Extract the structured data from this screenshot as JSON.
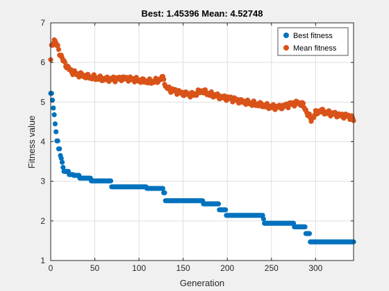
{
  "chart_data": {
    "type": "scatter",
    "title": "Best: 1.45396 Mean: 4.52748",
    "xlabel": "Generation",
    "ylabel": "Fitness value",
    "xlim": [
      0,
      343
    ],
    "ylim": [
      1,
      7
    ],
    "xticks": [
      "0",
      "50",
      "100",
      "150",
      "200",
      "250",
      "300"
    ],
    "yticks": [
      "1",
      "2",
      "3",
      "4",
      "5",
      "6",
      "7"
    ],
    "grid": true,
    "legend_position": "top-right",
    "series": [
      {
        "name": "Best fitness",
        "color": "#0072BD",
        "points": [
          [
            0,
            5.22
          ],
          [
            1,
            5.22
          ],
          [
            2,
            5.05
          ],
          [
            3,
            4.85
          ],
          [
            4,
            4.68
          ],
          [
            5,
            4.45
          ],
          [
            6,
            4.25
          ],
          [
            7,
            4.02
          ],
          [
            8,
            4.02
          ],
          [
            9,
            3.82
          ],
          [
            10,
            3.82
          ],
          [
            11,
            3.65
          ],
          [
            12,
            3.58
          ],
          [
            13,
            3.48
          ],
          [
            14,
            3.35
          ],
          [
            15,
            3.25
          ],
          [
            20,
            3.25
          ],
          [
            21,
            3.17
          ],
          [
            25,
            3.17
          ],
          [
            26,
            3.15
          ],
          [
            32,
            3.15
          ],
          [
            33,
            3.08
          ],
          [
            45,
            3.08
          ],
          [
            46,
            3.01
          ],
          [
            68,
            3.01
          ],
          [
            69,
            2.86
          ],
          [
            99,
            2.86
          ],
          [
            100,
            2.86
          ],
          [
            108,
            2.86
          ],
          [
            109,
            2.82
          ],
          [
            127,
            2.82
          ],
          [
            128,
            2.71
          ],
          [
            129,
            2.71
          ],
          [
            130,
            2.51
          ],
          [
            172,
            2.51
          ],
          [
            173,
            2.43
          ],
          [
            190,
            2.43
          ],
          [
            191,
            2.28
          ],
          [
            198,
            2.28
          ],
          [
            199,
            2.14
          ],
          [
            240,
            2.14
          ],
          [
            241,
            2.05
          ],
          [
            242,
            1.94
          ],
          [
            275,
            1.94
          ],
          [
            276,
            1.85
          ],
          [
            288,
            1.85
          ],
          [
            289,
            1.68
          ],
          [
            293,
            1.68
          ],
          [
            294,
            1.47
          ],
          [
            343,
            1.47
          ]
        ]
      },
      {
        "name": "Mean fitness",
        "color": "#D95319",
        "points": [
          [
            0,
            6.04
          ],
          [
            1,
            6.38
          ],
          [
            2,
            6.45
          ],
          [
            3,
            6.55
          ],
          [
            4,
            6.58
          ],
          [
            5,
            6.52
          ],
          [
            6,
            6.5
          ],
          [
            7,
            6.42
          ],
          [
            8,
            6.38
          ],
          [
            9,
            6.32
          ],
          [
            10,
            6.25
          ],
          [
            12,
            6.15
          ],
          [
            14,
            6.05
          ],
          [
            16,
            5.98
          ],
          [
            18,
            5.92
          ],
          [
            20,
            5.85
          ],
          [
            22,
            5.8
          ],
          [
            25,
            5.76
          ],
          [
            28,
            5.72
          ],
          [
            30,
            5.7
          ],
          [
            35,
            5.68
          ],
          [
            40,
            5.65
          ],
          [
            45,
            5.63
          ],
          [
            50,
            5.62
          ],
          [
            55,
            5.6
          ],
          [
            60,
            5.58
          ],
          [
            65,
            5.58
          ],
          [
            70,
            5.58
          ],
          [
            75,
            5.58
          ],
          [
            80,
            5.6
          ],
          [
            85,
            5.6
          ],
          [
            90,
            5.58
          ],
          [
            95,
            5.57
          ],
          [
            100,
            5.55
          ],
          [
            105,
            5.53
          ],
          [
            110,
            5.52
          ],
          [
            115,
            5.52
          ],
          [
            120,
            5.54
          ],
          [
            125,
            5.58
          ],
          [
            128,
            5.62
          ],
          [
            130,
            5.38
          ],
          [
            135,
            5.32
          ],
          [
            140,
            5.28
          ],
          [
            145,
            5.25
          ],
          [
            150,
            5.22
          ],
          [
            155,
            5.2
          ],
          [
            160,
            5.18
          ],
          [
            165,
            5.22
          ],
          [
            170,
            5.28
          ],
          [
            175,
            5.25
          ],
          [
            180,
            5.2
          ],
          [
            185,
            5.18
          ],
          [
            190,
            5.14
          ],
          [
            195,
            5.12
          ],
          [
            200,
            5.1
          ],
          [
            205,
            5.08
          ],
          [
            210,
            5.05
          ],
          [
            215,
            5.02
          ],
          [
            220,
            5.0
          ],
          [
            225,
            4.98
          ],
          [
            230,
            4.96
          ],
          [
            235,
            4.94
          ],
          [
            240,
            4.92
          ],
          [
            245,
            4.9
          ],
          [
            250,
            4.88
          ],
          [
            255,
            4.87
          ],
          [
            260,
            4.88
          ],
          [
            265,
            4.9
          ],
          [
            270,
            4.93
          ],
          [
            275,
            4.96
          ],
          [
            280,
            4.98
          ],
          [
            285,
            4.95
          ],
          [
            290,
            4.75
          ],
          [
            295,
            4.55
          ],
          [
            300,
            4.72
          ],
          [
            305,
            4.78
          ],
          [
            310,
            4.75
          ],
          [
            315,
            4.72
          ],
          [
            320,
            4.7
          ],
          [
            325,
            4.68
          ],
          [
            330,
            4.66
          ],
          [
            335,
            4.65
          ],
          [
            340,
            4.62
          ],
          [
            343,
            4.55
          ]
        ]
      }
    ]
  }
}
